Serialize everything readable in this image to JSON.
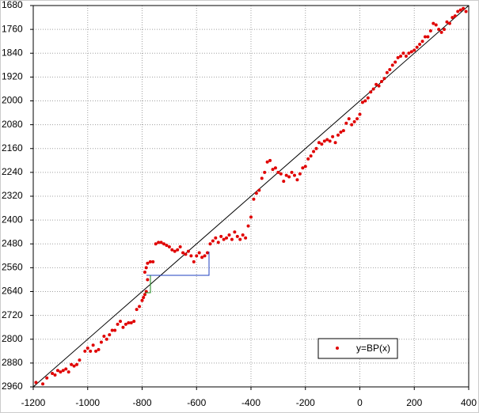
{
  "chart_data": {
    "type": "scatter",
    "xlim": [
      -1200,
      400
    ],
    "xticks": [
      -1200,
      -1000,
      -800,
      -600,
      -400,
      -200,
      0,
      200,
      400
    ],
    "ylim": [
      2960,
      1680
    ],
    "yticks": [
      1680,
      1760,
      1840,
      1920,
      2000,
      2080,
      2160,
      2240,
      2320,
      2400,
      2480,
      2560,
      2640,
      2720,
      2800,
      2880,
      2960
    ],
    "grid": true,
    "legend": "lower right",
    "reference_line": {
      "color": "#000000",
      "x": [
        -1200,
        400
      ],
      "values": [
        2960,
        1680
      ]
    },
    "series": [
      {
        "name": "y=BP(x)",
        "color": "#e00000",
        "x": [
          -1190,
          -1165,
          -1150,
          -1130,
          -1120,
          -1110,
          -1100,
          -1090,
          -1080,
          -1070,
          -1060,
          -1050,
          -1040,
          -1030,
          -1010,
          -1000,
          -990,
          -980,
          -970,
          -960,
          -950,
          -940,
          -930,
          -920,
          -910,
          -900,
          -890,
          -880,
          -870,
          -860,
          -850,
          -840,
          -830,
          -820,
          -810,
          -800,
          -795,
          -790,
          -785,
          -780,
          -790,
          -785,
          -780,
          -770,
          -760,
          -750,
          -740,
          -730,
          -720,
          -710,
          -700,
          -690,
          -680,
          -670,
          -660,
          -650,
          -640,
          -630,
          -620,
          -610,
          -600,
          -590,
          -580,
          -570,
          -560,
          -550,
          -540,
          -530,
          -520,
          -510,
          -500,
          -490,
          -480,
          -470,
          -460,
          -450,
          -440,
          -430,
          -420,
          -410,
          -400,
          -390,
          -380,
          -370,
          -360,
          -350,
          -340,
          -330,
          -320,
          -310,
          -300,
          -290,
          -280,
          -270,
          -260,
          -250,
          -240,
          -230,
          -220,
          -210,
          -200,
          -190,
          -180,
          -170,
          -160,
          -150,
          -140,
          -130,
          -120,
          -110,
          -100,
          -90,
          -80,
          -70,
          -60,
          -50,
          -40,
          -30,
          -20,
          -10,
          0,
          10,
          20,
          30,
          40,
          50,
          60,
          70,
          80,
          90,
          100,
          110,
          120,
          130,
          140,
          150,
          160,
          170,
          180,
          190,
          200,
          210,
          220,
          230,
          240,
          250,
          260,
          270,
          280,
          290,
          300,
          310,
          320,
          330,
          340,
          350,
          360,
          370,
          380,
          390
        ],
        "values": [
          2945,
          2950,
          2930,
          2915,
          2920,
          2905,
          2910,
          2905,
          2900,
          2910,
          2885,
          2890,
          2885,
          2870,
          2840,
          2830,
          2840,
          2820,
          2840,
          2835,
          2810,
          2790,
          2800,
          2785,
          2770,
          2770,
          2750,
          2740,
          2760,
          2750,
          2745,
          2745,
          2740,
          2700,
          2690,
          2670,
          2660,
          2650,
          2640,
          2600,
          2575,
          2560,
          2545,
          2540,
          2540,
          2480,
          2475,
          2475,
          2480,
          2485,
          2490,
          2500,
          2505,
          2500,
          2490,
          2510,
          2515,
          2505,
          2520,
          2540,
          2520,
          2510,
          2525,
          2520,
          2510,
          2480,
          2470,
          2460,
          2475,
          2455,
          2465,
          2460,
          2450,
          2465,
          2440,
          2455,
          2465,
          2450,
          2460,
          2420,
          2390,
          2330,
          2310,
          2300,
          2260,
          2240,
          2205,
          2200,
          2230,
          2225,
          2240,
          2245,
          2270,
          2250,
          2255,
          2240,
          2250,
          2265,
          2245,
          2225,
          2220,
          2195,
          2185,
          2170,
          2160,
          2140,
          2145,
          2135,
          2130,
          2135,
          2120,
          2140,
          2115,
          2105,
          2100,
          2075,
          2060,
          2080,
          2070,
          2060,
          2045,
          2005,
          2000,
          1990,
          1970,
          1960,
          1945,
          1950,
          1935,
          1925,
          1905,
          1895,
          1880,
          1870,
          1855,
          1850,
          1840,
          1850,
          1840,
          1835,
          1830,
          1820,
          1810,
          1800,
          1785,
          1785,
          1765,
          1740,
          1745,
          1760,
          1770,
          1760,
          1735,
          1740,
          1720,
          1715,
          1700,
          1695,
          1690,
          1700
        ]
      }
    ]
  }
}
